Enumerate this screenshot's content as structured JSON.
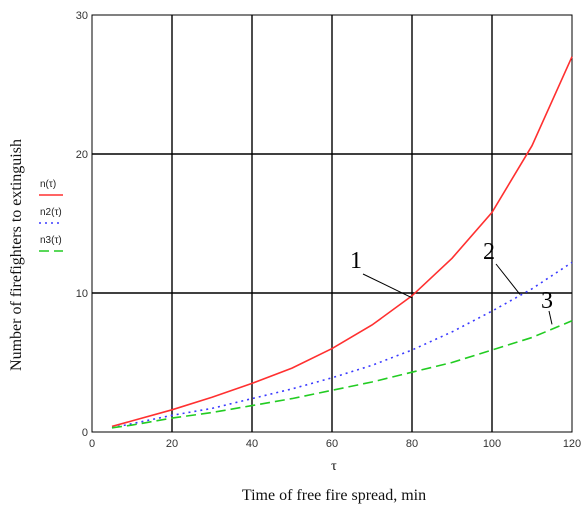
{
  "chart_data": {
    "type": "line",
    "xlabel": "Time of free fire spread, min",
    "x_symbol": "τ",
    "ylabel": "Number of firefighters to extinguish",
    "xlim": [
      0,
      120
    ],
    "ylim": [
      0,
      30
    ],
    "x_ticks": [
      0,
      20,
      40,
      60,
      80,
      100,
      120
    ],
    "y_ticks": [
      0,
      10,
      20,
      30
    ],
    "grid": true,
    "legend_position": "left",
    "x": [
      5,
      10,
      20,
      30,
      40,
      50,
      60,
      70,
      80,
      90,
      100,
      110,
      120
    ],
    "series": [
      {
        "name": "n(τ)",
        "color": "#ff3030",
        "dash": "solid",
        "callout": "1",
        "values": [
          0.4,
          0.8,
          1.6,
          2.5,
          3.5,
          4.6,
          6.0,
          7.7,
          9.8,
          12.5,
          15.8,
          20.6,
          27.0
        ]
      },
      {
        "name": "n2(τ)",
        "color": "#3a3aff",
        "dash": "dotted",
        "callout": "2",
        "values": [
          0.3,
          0.6,
          1.2,
          1.7,
          2.4,
          3.1,
          3.9,
          4.8,
          5.9,
          7.2,
          8.7,
          10.3,
          12.2
        ]
      },
      {
        "name": "n3(τ)",
        "color": "#22cc22",
        "dash": "dashed",
        "callout": "3",
        "values": [
          0.3,
          0.5,
          1.0,
          1.4,
          1.9,
          2.4,
          3.0,
          3.6,
          4.3,
          5.0,
          5.9,
          6.8,
          8.0
        ]
      }
    ]
  }
}
